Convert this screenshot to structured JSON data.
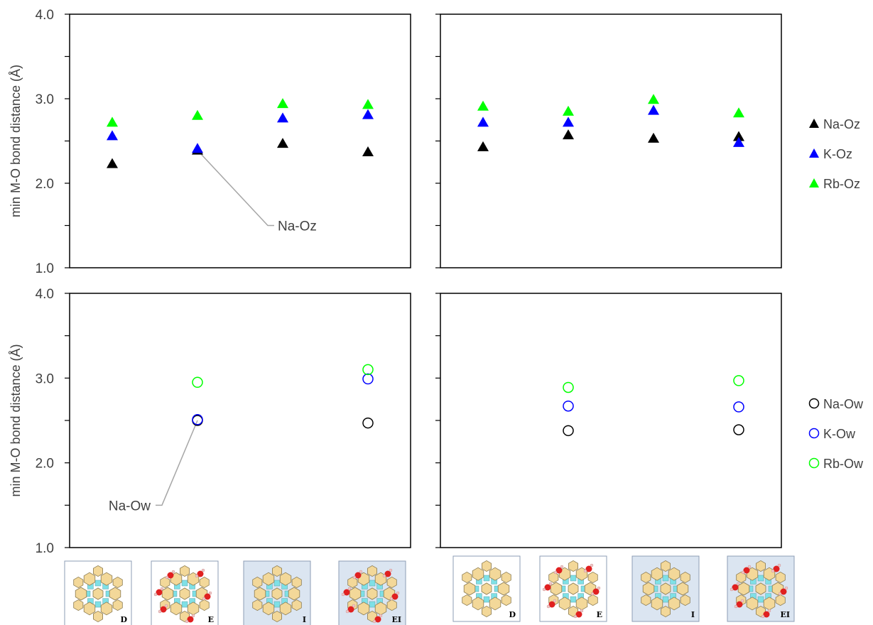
{
  "colors": {
    "na": "#000000",
    "k": "#0000ff",
    "rb": "#00ff00",
    "frame": "#000000",
    "text": "#404040",
    "struct_bg": "#dbe5f1",
    "struct_ring": "#f3d899",
    "struct_link": "#7fe0e6",
    "water_o": "#e02020",
    "water_h": "#f0c8c8"
  },
  "chart_data": [
    {
      "panel": "top-left",
      "type": "scatter",
      "marker": "filled-triangle",
      "ylabel": "min M-O bond distance (Å)",
      "ylim": [
        1.0,
        4.0
      ],
      "yticks": [
        "1.0",
        "2.0",
        "3.0",
        "4.0"
      ],
      "x": [
        1,
        2,
        3,
        4
      ],
      "series": [
        {
          "name": "Na-Oz",
          "values": [
            2.23,
            2.39,
            2.47,
            2.37
          ]
        },
        {
          "name": "K-Oz",
          "values": [
            2.56,
            2.41,
            2.77,
            2.81
          ]
        },
        {
          "name": "Rb-Oz",
          "values": [
            2.72,
            2.8,
            2.94,
            2.93
          ]
        }
      ],
      "annotation": {
        "text": "Na-Oz",
        "series": 0,
        "point": 1
      }
    },
    {
      "panel": "top-right",
      "type": "scatter",
      "marker": "filled-triangle",
      "ylim": [
        1.0,
        4.0
      ],
      "x": [
        1,
        2,
        3,
        4
      ],
      "series": [
        {
          "name": "Na-Oz",
          "values": [
            2.43,
            2.57,
            2.53,
            2.55
          ]
        },
        {
          "name": "K-Oz",
          "values": [
            2.72,
            2.72,
            2.86,
            2.48
          ]
        },
        {
          "name": "Rb-Oz",
          "values": [
            2.91,
            2.85,
            2.99,
            2.83
          ]
        }
      ]
    },
    {
      "panel": "bottom-left",
      "type": "scatter",
      "marker": "open-circle",
      "ylabel": "min M-O bond distance (Å)",
      "ylim": [
        1.0,
        4.0
      ],
      "yticks": [
        "1.0",
        "2.0",
        "3.0",
        "4.0"
      ],
      "x": [
        1,
        2,
        3,
        4
      ],
      "series": [
        {
          "name": "Na-Ow",
          "values": [
            null,
            2.5,
            null,
            2.47
          ]
        },
        {
          "name": "K-Ow",
          "values": [
            null,
            2.51,
            null,
            2.99
          ]
        },
        {
          "name": "Rb-Ow",
          "values": [
            null,
            2.95,
            null,
            3.1
          ]
        }
      ],
      "annotation": {
        "text": "Na-Ow",
        "series": 0,
        "point": 1
      }
    },
    {
      "panel": "bottom-right",
      "type": "scatter",
      "marker": "open-circle",
      "ylim": [
        1.0,
        4.0
      ],
      "x": [
        1,
        2,
        3,
        4
      ],
      "series": [
        {
          "name": "Na-Ow",
          "values": [
            null,
            2.38,
            null,
            2.39
          ]
        },
        {
          "name": "K-Ow",
          "values": [
            null,
            2.67,
            null,
            2.66
          ]
        },
        {
          "name": "Rb-Ow",
          "values": [
            null,
            2.89,
            null,
            2.97
          ]
        }
      ]
    }
  ],
  "legends": {
    "top": [
      "Na-Oz",
      "K-Oz",
      "Rb-Oz"
    ],
    "bottom": [
      "Na-Ow",
      "K-Ow",
      "Rb-Ow"
    ]
  },
  "structures": {
    "left": [
      {
        "label": "D",
        "shaded": false,
        "water": false
      },
      {
        "label": "E",
        "shaded": false,
        "water": true
      },
      {
        "label": "I",
        "shaded": true,
        "water": false
      },
      {
        "label": "EI",
        "shaded": true,
        "water": true
      }
    ],
    "right": [
      {
        "label": "D",
        "shaded": false,
        "water": false
      },
      {
        "label": "E",
        "shaded": false,
        "water": true
      },
      {
        "label": "I",
        "shaded": true,
        "water": false
      },
      {
        "label": "EI",
        "shaded": true,
        "water": true
      }
    ]
  }
}
